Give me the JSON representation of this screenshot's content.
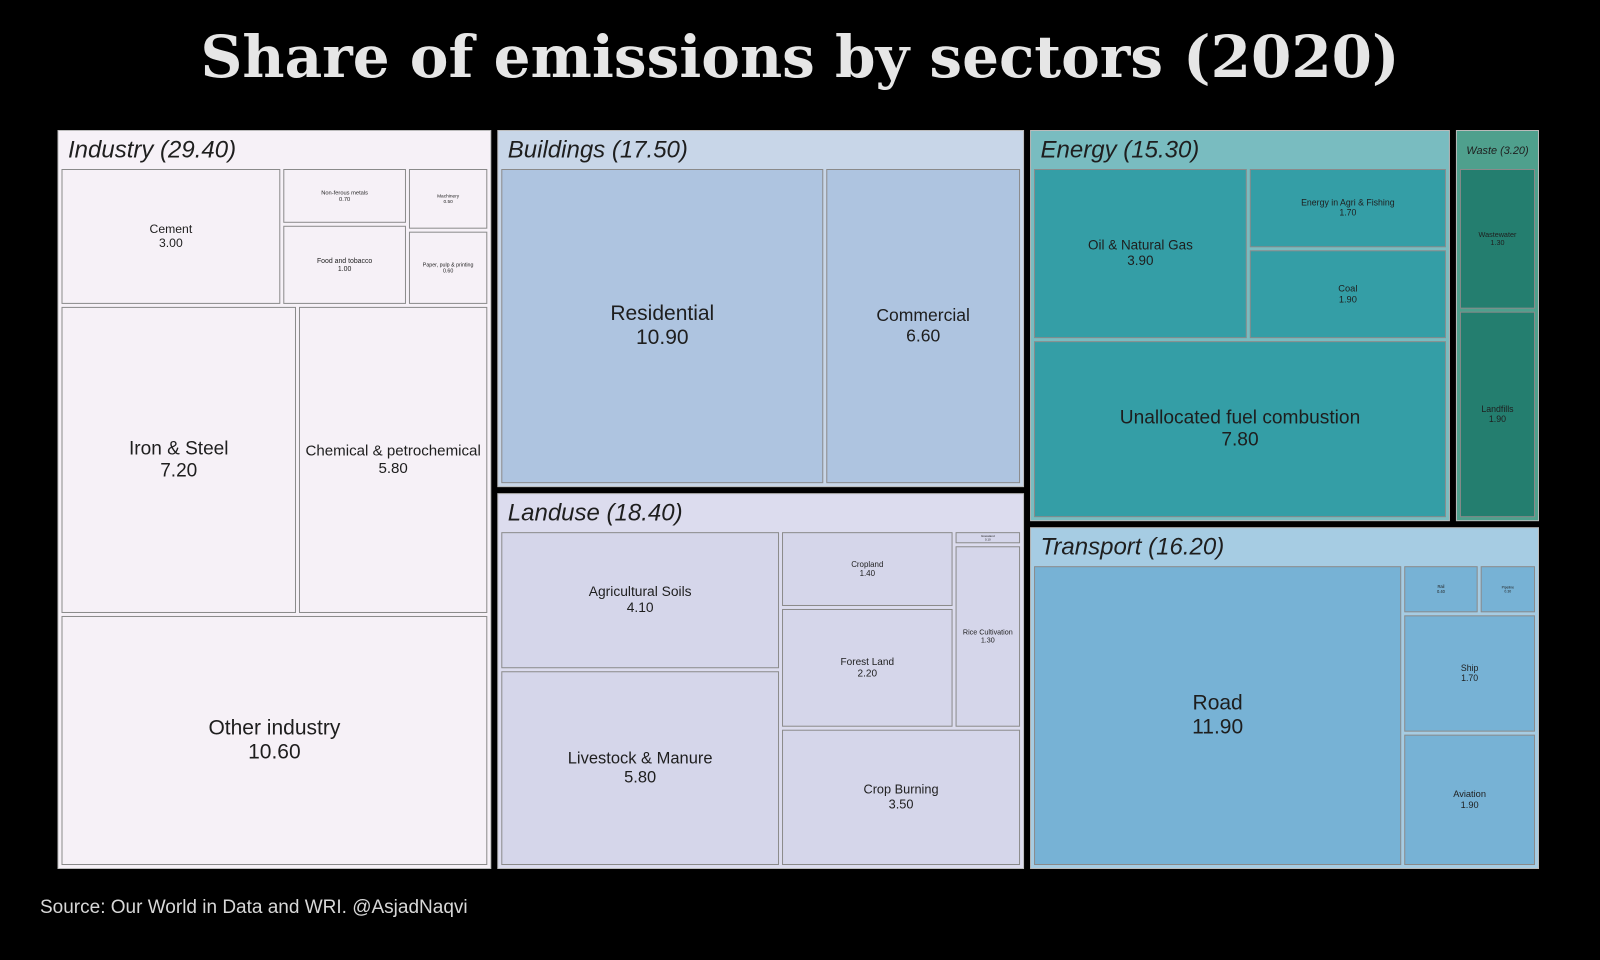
{
  "chart_data": {
    "type": "treemap",
    "title": "Share of emissions by sectors (2020)",
    "source": "Source: Our World in Data and WRI. @AsjadNaqvi",
    "groups": [
      {
        "label": "Industry (29.40)",
        "value": 29.4,
        "header_color": "#f6f1f7",
        "color": "#f6f1f7",
        "categories": [
          "Cement",
          "Non-ferous metals",
          "Food and tobacco",
          "Machinery",
          "Paper, pulp & printing",
          "Iron & Steel",
          "Chemical & petrochemical",
          "Other industry"
        ],
        "values": [
          3,
          0.7,
          1,
          0.5,
          0.6,
          7.2,
          5.8,
          10.6
        ],
        "value_labels": [
          "3.00",
          "0.70",
          "1.00",
          "0.50",
          "0.60",
          "7.20",
          "5.80",
          "10.60"
        ]
      },
      {
        "label": "Buildings (17.50)",
        "value": 17.5,
        "header_color": "#c8d6e8",
        "color": "#aec4e0",
        "categories": [
          "Residential",
          "Commercial"
        ],
        "values": [
          10.9,
          6.6
        ],
        "value_labels": [
          "10.90",
          "6.60"
        ]
      },
      {
        "label": "Landuse (18.40)",
        "value": 18.4,
        "header_color": "#dcdcee",
        "color": "#d5d6ea",
        "categories": [
          "Agricultural Soils",
          "Livestock & Manure",
          "Cropland",
          "Forest Land",
          "Grassland",
          "Rice Cultivation",
          "Crop Burning"
        ],
        "values": [
          4.1,
          5.8,
          1.4,
          2.2,
          0.1,
          1.3,
          3.5
        ],
        "value_labels": [
          "4.10",
          "5.80",
          "1.40",
          "2.20",
          "0.10",
          "1.30",
          "3.50"
        ]
      },
      {
        "label": "Energy (15.30)",
        "value": 15.3,
        "header_color": "#79bcc0",
        "color": "#349ea6",
        "categories": [
          "Oil & Natural Gas",
          "Energy in Agri & Fishing",
          "Coal",
          "Unallocated fuel combustion"
        ],
        "values": [
          3.9,
          1.7,
          1.9,
          7.8
        ],
        "value_labels": [
          "3.90",
          "1.70",
          "1.90",
          "7.80"
        ]
      },
      {
        "label": "Waste (3.20)",
        "value": 3.2,
        "header_color": "#4fa08d",
        "color": "#247e6f",
        "categories": [
          "Wastewater",
          "Landfills"
        ],
        "values": [
          1.3,
          1.9
        ],
        "value_labels": [
          "1.30",
          "1.90"
        ]
      },
      {
        "label": "Transport (16.20)",
        "value": 16.2,
        "header_color": "#a6cce3",
        "color": "#77b2d5",
        "categories": [
          "Road",
          "Rail",
          "Pipeline",
          "Ship",
          "Aviation"
        ],
        "values": [
          11.9,
          0.4,
          0.3,
          1.7,
          1.9
        ],
        "value_labels": [
          "11.90",
          "0.40",
          "0.30",
          "1.70",
          "1.90"
        ]
      }
    ]
  }
}
